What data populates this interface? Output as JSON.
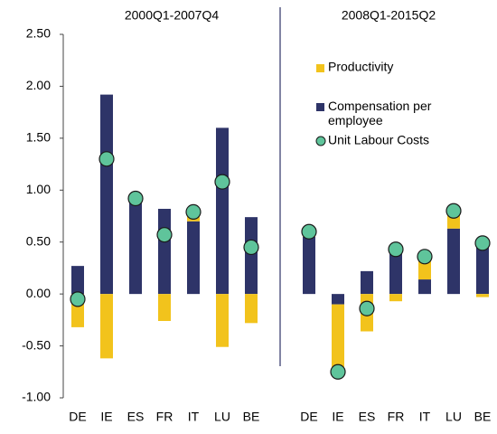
{
  "chart_data": {
    "type": "stacked-bar-dot",
    "annotations": [
      "2000Q1-2007Q4",
      "2008Q1-2015Q2"
    ],
    "categories": [
      "DE",
      "IE",
      "ES",
      "FR",
      "IT",
      "LU",
      "BE",
      null,
      "DE",
      "IE",
      "ES",
      "FR",
      "IT",
      "LU",
      "BE"
    ],
    "series": [
      {
        "name": "Productivity",
        "color": "#f2c31c",
        "kind": "bar",
        "values": [
          -0.32,
          -0.62,
          0.02,
          -0.26,
          0.06,
          -0.51,
          -0.28,
          null,
          0.05,
          -0.65,
          -0.36,
          -0.07,
          0.22,
          0.17,
          -0.03
        ]
      },
      {
        "name": "Compensation per employee",
        "color": "#2e3468",
        "kind": "bar",
        "values": [
          0.27,
          1.92,
          0.9,
          0.82,
          0.7,
          1.6,
          0.74,
          null,
          0.55,
          -0.1,
          0.22,
          0.45,
          0.14,
          0.63,
          0.45
        ]
      },
      {
        "name": "Unit Labour Costs",
        "color": "#5fc49b",
        "kind": "dot",
        "values": [
          -0.05,
          1.3,
          0.92,
          0.57,
          0.79,
          1.08,
          0.45,
          null,
          0.6,
          -0.75,
          -0.14,
          0.43,
          0.36,
          0.8,
          0.49
        ]
      }
    ],
    "ylim": [
      -1,
      2.5
    ],
    "yticks": [
      {
        "value": -1,
        "label": "-1.00"
      },
      {
        "value": -0.5,
        "label": "-0.50"
      },
      {
        "value": 0,
        "label": "0.00"
      },
      {
        "value": 0.5,
        "label": "0.50"
      },
      {
        "value": 1,
        "label": "1.00"
      },
      {
        "value": 1.5,
        "label": "1.50"
      },
      {
        "value": 2,
        "label": "2.00"
      },
      {
        "value": 2.5,
        "label": "2.50"
      }
    ]
  }
}
